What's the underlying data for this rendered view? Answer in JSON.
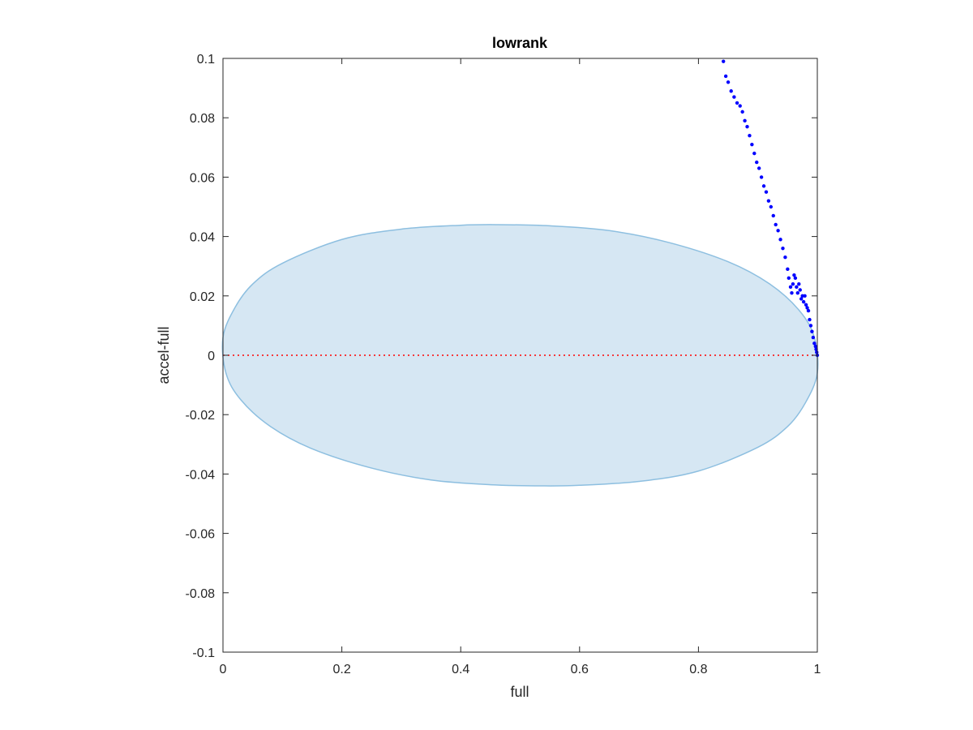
{
  "chart_data": {
    "type": "scatter",
    "title": "lowrank",
    "xlabel": "full",
    "ylabel": "accel-full",
    "xlim": [
      0,
      1
    ],
    "ylim": [
      -0.1,
      0.1
    ],
    "xticks": [
      0,
      0.2,
      0.4,
      0.6,
      0.8,
      1
    ],
    "xtick_labels": [
      "0",
      "0.2",
      "0.4",
      "0.6",
      "0.8",
      "1"
    ],
    "yticks": [
      -0.1,
      -0.08,
      -0.06,
      -0.04,
      -0.02,
      0,
      0.02,
      0.04,
      0.06,
      0.08,
      0.1
    ],
    "ytick_labels": [
      "-0.1",
      "-0.08",
      "-0.06",
      "-0.04",
      "-0.02",
      "0",
      "0.02",
      "0.04",
      "0.06",
      "0.08",
      "0.1"
    ],
    "grid": false,
    "region": {
      "type": "ellipse",
      "fill": "#d6e7f3",
      "stroke": "#8dbfe0",
      "points": [
        [
          0.0,
          0.006
        ],
        [
          0.02,
          0.016
        ],
        [
          0.05,
          0.024
        ],
        [
          0.1,
          0.031
        ],
        [
          0.2,
          0.039
        ],
        [
          0.3,
          0.0425
        ],
        [
          0.4,
          0.0438
        ],
        [
          0.46,
          0.044
        ],
        [
          0.55,
          0.0436
        ],
        [
          0.65,
          0.042
        ],
        [
          0.75,
          0.038
        ],
        [
          0.85,
          0.0315
        ],
        [
          0.92,
          0.024
        ],
        [
          0.97,
          0.015
        ],
        [
          0.995,
          0.006
        ],
        [
          1.0,
          -0.006
        ],
        [
          0.98,
          -0.016
        ],
        [
          0.95,
          -0.024
        ],
        [
          0.9,
          -0.031
        ],
        [
          0.8,
          -0.039
        ],
        [
          0.7,
          -0.0425
        ],
        [
          0.6,
          -0.0438
        ],
        [
          0.54,
          -0.044
        ],
        [
          0.45,
          -0.0436
        ],
        [
          0.35,
          -0.042
        ],
        [
          0.25,
          -0.038
        ],
        [
          0.15,
          -0.0315
        ],
        [
          0.08,
          -0.024
        ],
        [
          0.03,
          -0.015
        ],
        [
          0.005,
          -0.006
        ]
      ]
    },
    "reference_line": {
      "y": 0,
      "x_range": [
        0,
        1
      ],
      "color": "#ff0000",
      "style": "dotted"
    },
    "series": [
      {
        "color": "#0000ff",
        "points": [
          [
            0.842,
            0.099
          ],
          [
            0.846,
            0.094
          ],
          [
            0.85,
            0.092
          ],
          [
            0.855,
            0.089
          ],
          [
            0.86,
            0.087
          ],
          [
            0.865,
            0.085
          ],
          [
            0.87,
            0.084
          ],
          [
            0.874,
            0.082
          ],
          [
            0.878,
            0.079
          ],
          [
            0.882,
            0.077
          ],
          [
            0.886,
            0.074
          ],
          [
            0.89,
            0.071
          ],
          [
            0.894,
            0.068
          ],
          [
            0.898,
            0.065
          ],
          [
            0.902,
            0.063
          ],
          [
            0.906,
            0.06
          ],
          [
            0.91,
            0.057
          ],
          [
            0.914,
            0.055
          ],
          [
            0.918,
            0.052
          ],
          [
            0.922,
            0.05
          ],
          [
            0.926,
            0.047
          ],
          [
            0.93,
            0.044
          ],
          [
            0.934,
            0.042
          ],
          [
            0.938,
            0.039
          ],
          [
            0.942,
            0.036
          ],
          [
            0.946,
            0.033
          ],
          [
            0.95,
            0.029
          ],
          [
            0.952,
            0.026
          ],
          [
            0.955,
            0.023
          ],
          [
            0.957,
            0.021
          ],
          [
            0.959,
            0.024
          ],
          [
            0.961,
            0.027
          ],
          [
            0.963,
            0.026
          ],
          [
            0.965,
            0.023
          ],
          [
            0.967,
            0.021
          ],
          [
            0.969,
            0.024
          ],
          [
            0.971,
            0.022
          ],
          [
            0.973,
            0.019
          ],
          [
            0.975,
            0.02
          ],
          [
            0.977,
            0.018
          ],
          [
            0.979,
            0.02
          ],
          [
            0.981,
            0.017
          ],
          [
            0.983,
            0.016
          ],
          [
            0.985,
            0.015
          ],
          [
            0.987,
            0.012
          ],
          [
            0.989,
            0.01
          ],
          [
            0.991,
            0.008
          ],
          [
            0.993,
            0.006
          ],
          [
            0.995,
            0.004
          ],
          [
            0.997,
            0.003
          ],
          [
            0.998,
            0.002
          ],
          [
            0.999,
            0.001
          ],
          [
            1.0,
            0.0
          ]
        ]
      }
    ]
  }
}
